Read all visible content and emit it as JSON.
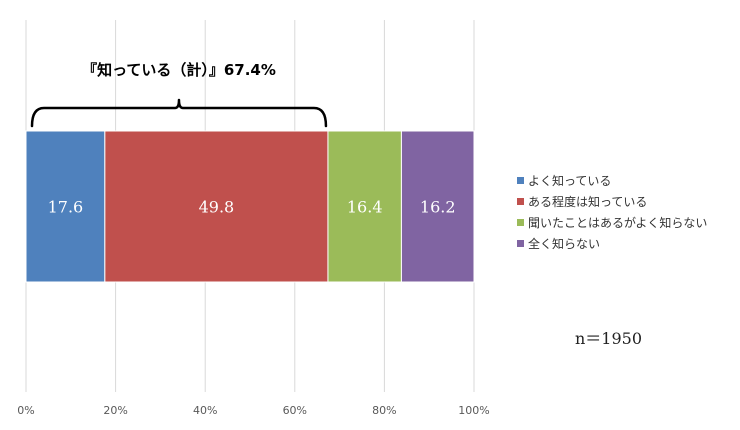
{
  "chart_data": {
    "type": "bar",
    "orientation": "horizontal",
    "stacked": true,
    "categories": [
      ""
    ],
    "series": [
      {
        "name": "よく知っている",
        "values": [
          17.6
        ],
        "label": "17.6",
        "color": "#4f81bd"
      },
      {
        "name": "ある程度は知っている",
        "values": [
          49.8
        ],
        "label": "49.8",
        "color": "#c0504d"
      },
      {
        "name": "聞いたことはあるがよく知らない",
        "values": [
          16.4
        ],
        "label": "16.4",
        "color": "#9bbb59"
      },
      {
        "name": "全く知らない",
        "values": [
          16.2
        ],
        "label": "16.2",
        "color": "#8064a2"
      }
    ],
    "xlim": [
      0,
      100
    ],
    "x_ticks": [
      "0%",
      "20%",
      "40%",
      "60%",
      "80%",
      "100%"
    ],
    "grid": true,
    "legend_position": "right",
    "annotation": {
      "text": "『知っている（計）』67.4%",
      "from": 0,
      "to": 67.4
    },
    "note": "n＝1950"
  }
}
